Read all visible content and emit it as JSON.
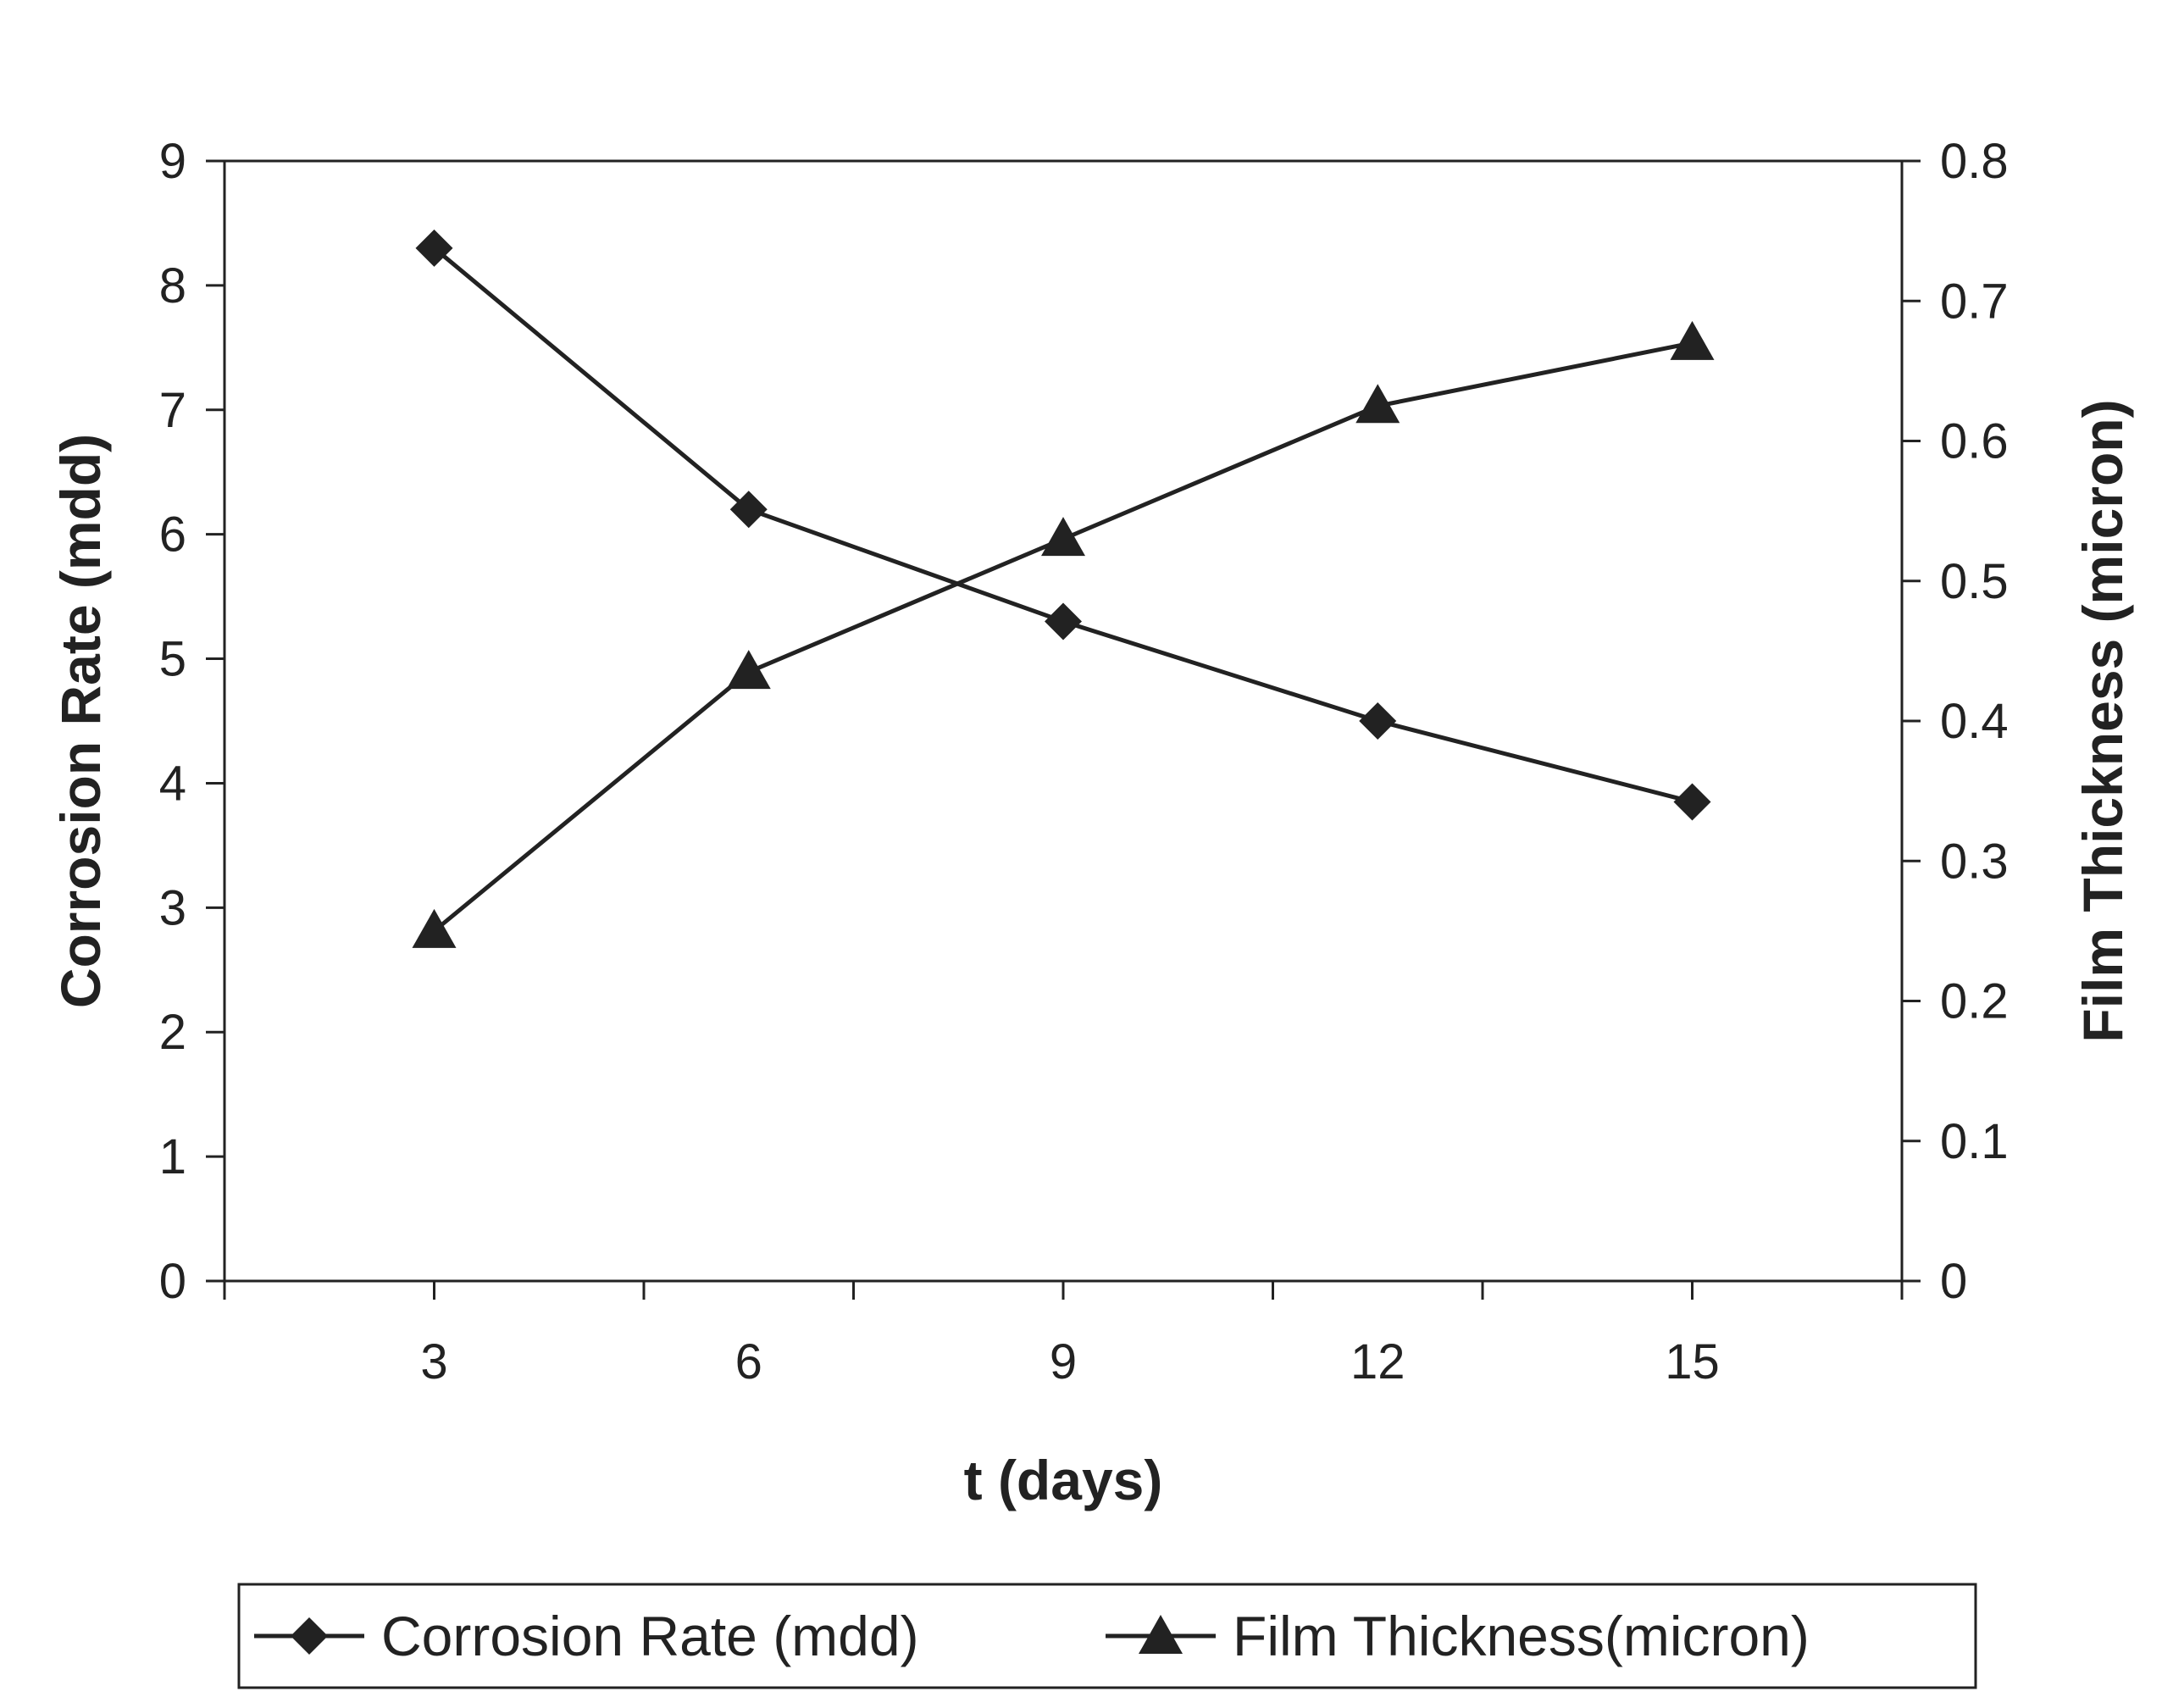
{
  "chart_data": {
    "type": "line",
    "x": [
      3,
      6,
      9,
      12,
      15
    ],
    "categories": [
      "3",
      "6",
      "9",
      "12",
      "15"
    ],
    "series": [
      {
        "name": "Corrosion Rate (mdd)",
        "axis": "left",
        "marker": "diamond",
        "values": [
          8.3,
          6.2,
          5.3,
          4.5,
          3.85
        ]
      },
      {
        "name": "Film Thickness(micron)",
        "axis": "right",
        "marker": "triangle",
        "values": [
          0.25,
          0.435,
          0.53,
          0.625,
          0.67
        ]
      }
    ],
    "xlabel": "t (days)",
    "ylabel": "Corrosion Rate (mdd)",
    "y2label": "Film Thickness (micron)",
    "ylim": [
      0,
      9
    ],
    "y2lim": [
      0,
      0.8
    ],
    "yticks": [
      "0",
      "1",
      "2",
      "3",
      "4",
      "5",
      "6",
      "7",
      "8",
      "9"
    ],
    "y2ticks": [
      "0",
      "0.1",
      "0.2",
      "0.3",
      "0.4",
      "0.5",
      "0.6",
      "0.7",
      "0.8"
    ],
    "grid": false,
    "legend_position": "bottom",
    "colors": {
      "line": "#222222",
      "marker": "#222222",
      "background": "#ffffff"
    }
  }
}
